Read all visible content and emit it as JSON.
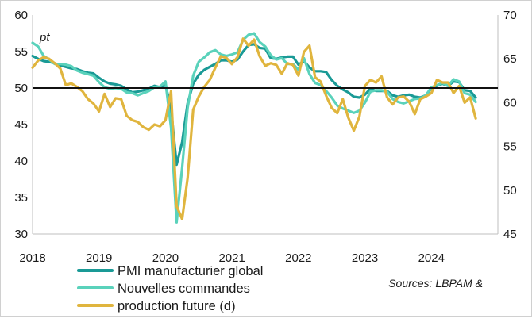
{
  "chart_data": {
    "type": "line",
    "title": "",
    "unit_label": "pt",
    "x_start": 2018.0,
    "x_end": 2025.0,
    "x_ticks": [
      "2018",
      "2019",
      "2020",
      "2021",
      "2022",
      "2023",
      "2024"
    ],
    "left_axis": {
      "ylim": [
        30,
        60
      ],
      "ticks": [
        "30",
        "35",
        "40",
        "45",
        "50",
        "55",
        "60"
      ]
    },
    "right_axis": {
      "ylim": [
        45,
        70
      ],
      "ticks": [
        "45",
        "50",
        "55",
        "60",
        "65",
        "70"
      ]
    },
    "reference_line": 50,
    "series": [
      {
        "name": "PMI manufacturier global",
        "axis": "left",
        "color": "#1a9a96",
        "start": 2018.0,
        "step_months": 1,
        "values": [
          54.4,
          54.0,
          53.7,
          53.6,
          53.4,
          53.1,
          52.9,
          52.7,
          52.6,
          52.3,
          52.1,
          52.0,
          51.4,
          50.9,
          50.6,
          50.5,
          50.3,
          49.8,
          49.4,
          49.5,
          49.7,
          49.9,
          50.3,
          50.1,
          50.4,
          47.2,
          39.5,
          42.6,
          47.9,
          50.6,
          51.8,
          52.5,
          52.9,
          53.3,
          53.8,
          53.8,
          53.6,
          53.9,
          55.0,
          55.9,
          56.0,
          55.5,
          55.4,
          54.1,
          54.0,
          54.2,
          54.3,
          54.3,
          53.2,
          53.7,
          52.8,
          52.3,
          52.3,
          52.2,
          51.1,
          50.3,
          49.8,
          49.4,
          48.8,
          48.7,
          49.1,
          49.9,
          49.6,
          49.6,
          49.6,
          49.0,
          48.8,
          49.0,
          49.1,
          48.8,
          48.7,
          49.0,
          50.0,
          50.3,
          50.6,
          50.3,
          50.9,
          50.8,
          49.7,
          49.6,
          48.7
        ]
      },
      {
        "name": "Nouvelles commandes",
        "axis": "left",
        "color": "#5ad2bb",
        "start": 2018.0,
        "step_months": 1,
        "values": [
          56.2,
          55.7,
          54.4,
          53.9,
          53.3,
          53.3,
          53.2,
          53.0,
          52.4,
          52.1,
          51.9,
          51.7,
          50.8,
          50.1,
          49.9,
          50.0,
          49.9,
          49.4,
          49.3,
          49.0,
          49.3,
          49.6,
          50.1,
          50.2,
          50.9,
          44.6,
          31.6,
          39.1,
          47.3,
          51.7,
          53.6,
          54.2,
          54.9,
          55.2,
          54.6,
          54.4,
          54.6,
          54.9,
          56.6,
          57.3,
          57.5,
          56.3,
          55.7,
          54.5,
          53.9,
          54.1,
          53.3,
          53.3,
          52.5,
          54.1,
          51.9,
          50.7,
          50.4,
          49.6,
          48.7,
          47.6,
          47.2,
          46.9,
          46.6,
          46.9,
          48.0,
          49.5,
          49.7,
          49.7,
          49.5,
          48.5,
          48.1,
          47.9,
          48.2,
          48.5,
          48.6,
          49.0,
          50.1,
          50.4,
          50.7,
          50.3,
          51.2,
          50.9,
          49.3,
          49.1,
          48.1
        ]
      },
      {
        "name": "production future (d)",
        "axis": "right",
        "color": "#e0b53e",
        "start": 2018.0,
        "step_months": 1,
        "values": [
          64.0,
          64.8,
          65.2,
          65.0,
          64.5,
          63.9,
          62.0,
          62.2,
          61.8,
          61.3,
          60.4,
          59.9,
          59.0,
          61.0,
          59.5,
          60.5,
          60.4,
          58.5,
          58.0,
          57.8,
          57.2,
          56.9,
          57.5,
          57.3,
          58.0,
          61.3,
          48.2,
          46.7,
          51.4,
          59.2,
          60.7,
          61.8,
          62.6,
          64.0,
          65.3,
          65.1,
          64.4,
          65.2,
          67.3,
          66.5,
          67.2,
          65.3,
          64.2,
          64.5,
          64.3,
          63.3,
          64.5,
          64.3,
          63.1,
          65.8,
          66.5,
          62.9,
          62.4,
          60.8,
          59.4,
          58.8,
          60.4,
          58.3,
          56.8,
          58.4,
          61.9,
          62.6,
          62.3,
          63.0,
          60.6,
          59.8,
          60.6,
          60.7,
          60.1,
          58.7,
          60.4,
          60.7,
          61.1,
          62.6,
          62.3,
          62.3,
          61.1,
          61.9,
          60.0,
          60.6,
          58.2
        ]
      }
    ],
    "legend_position": "bottom-left",
    "source_note": "Sources: LBPAM &"
  }
}
